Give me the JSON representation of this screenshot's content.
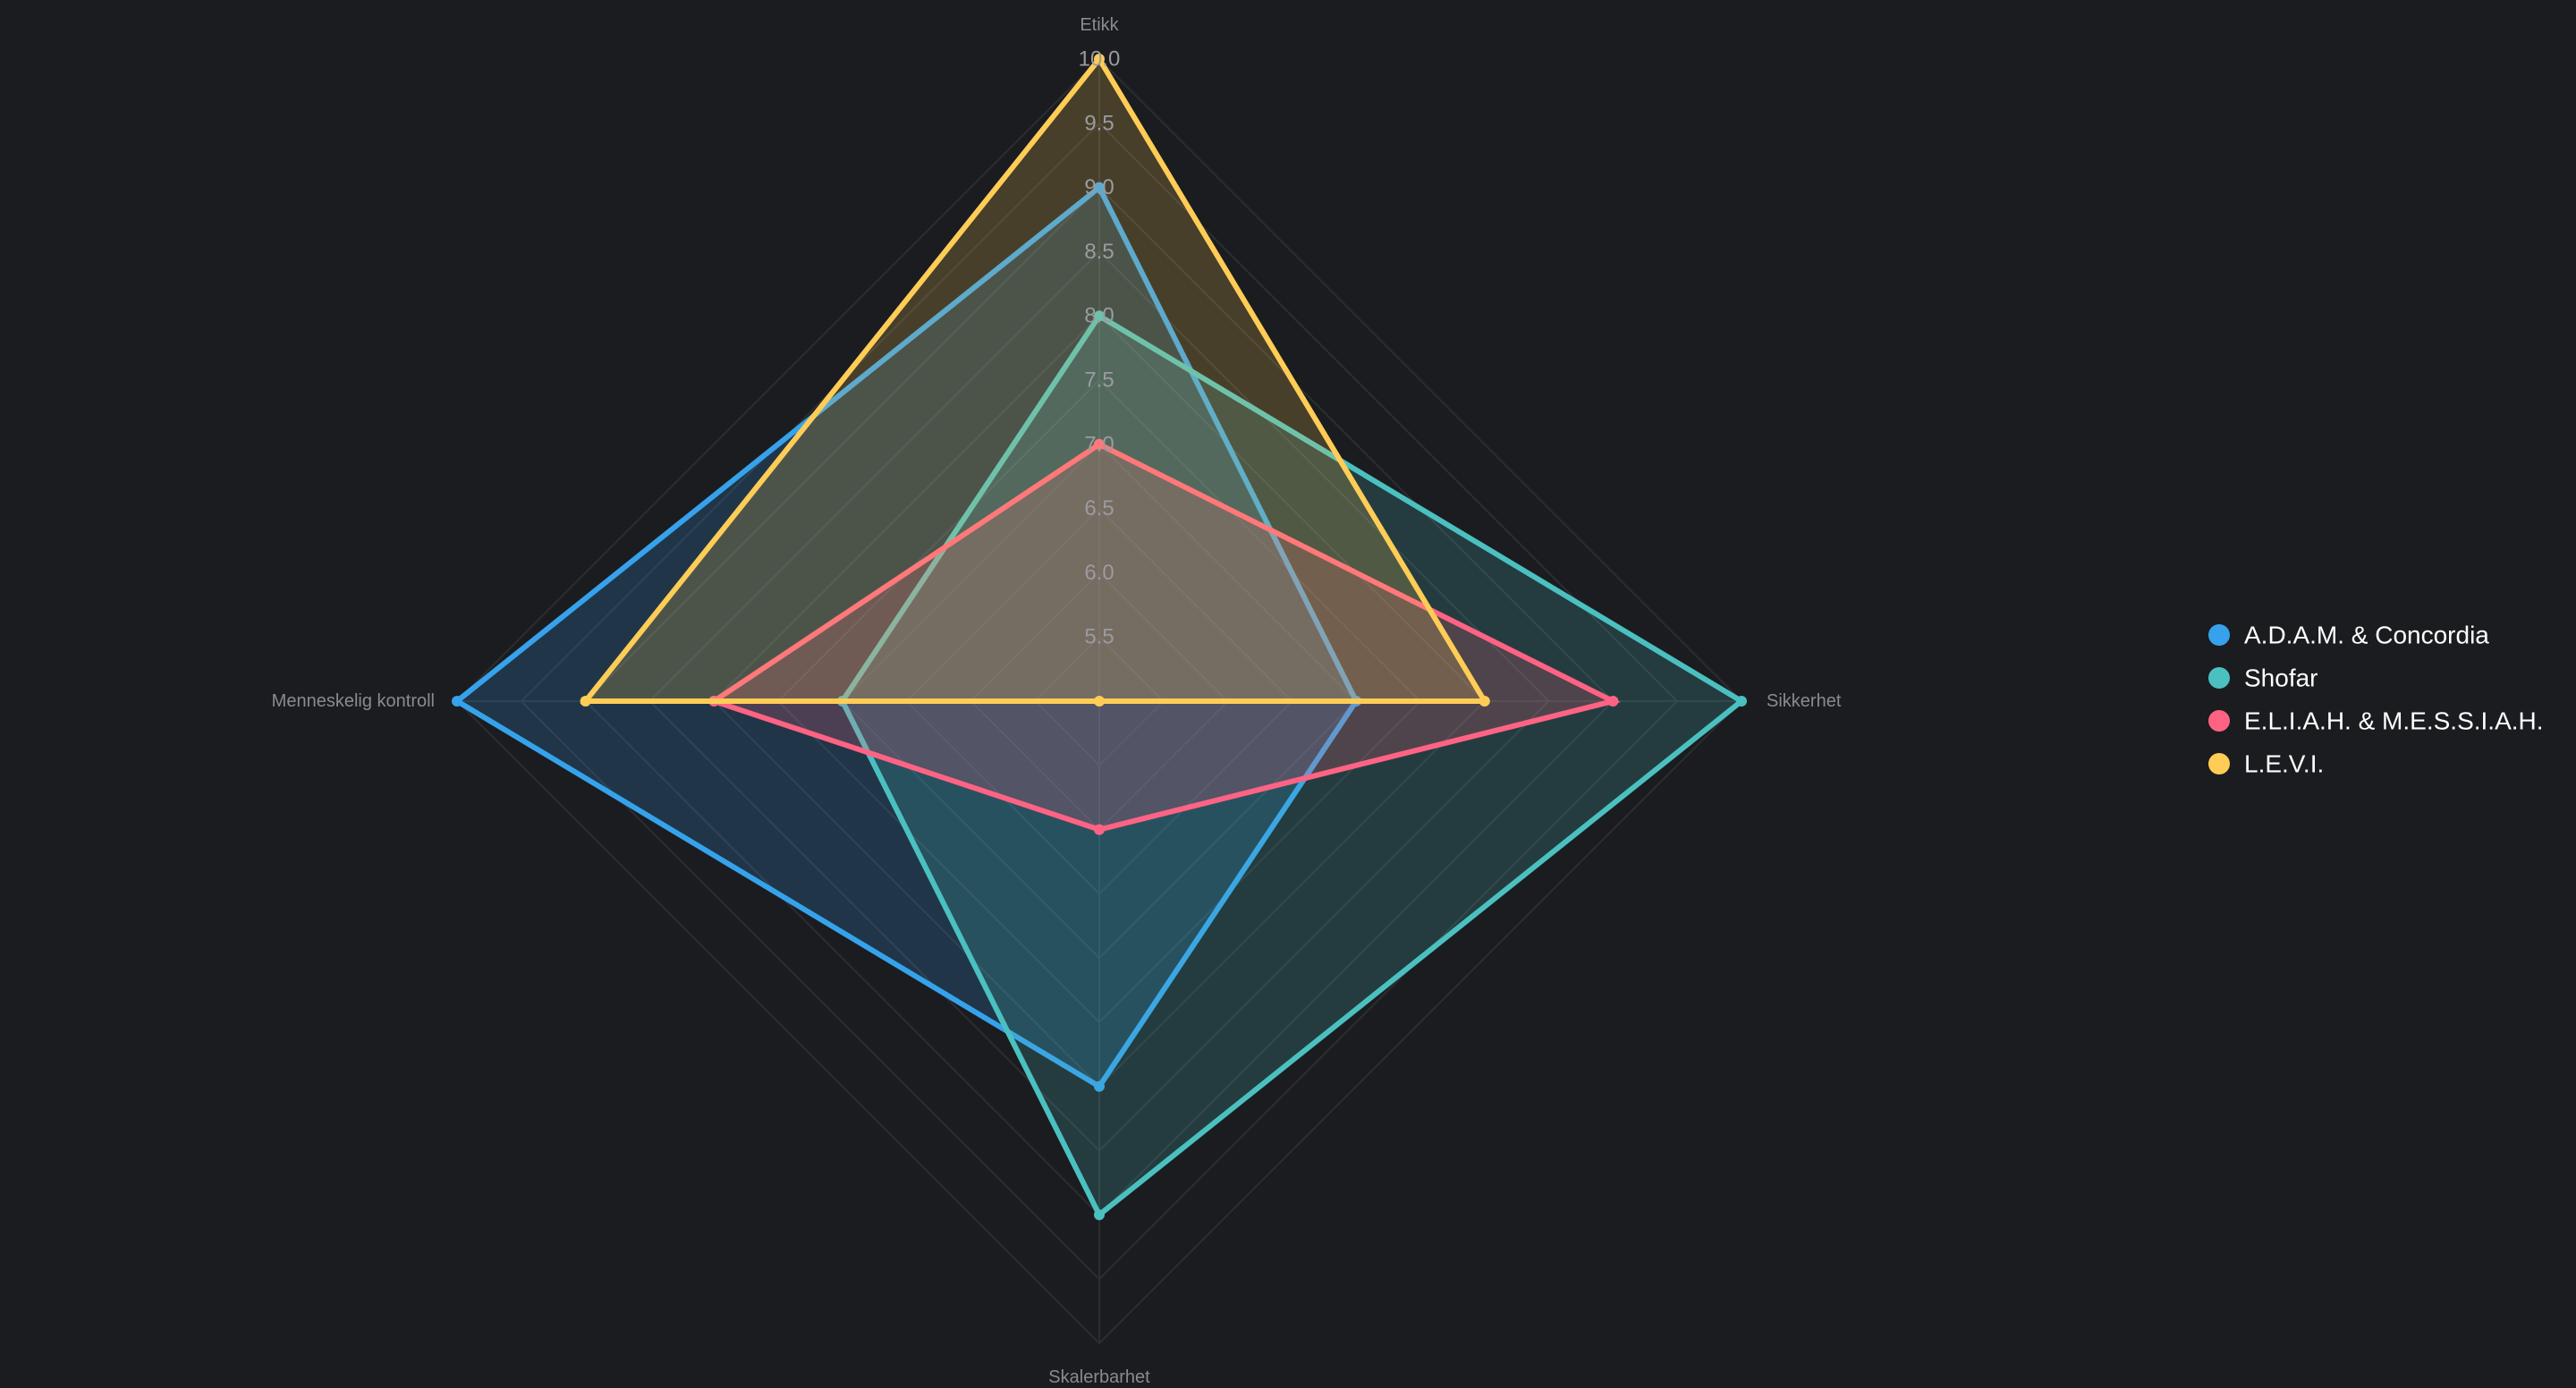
{
  "chart_data": {
    "type": "radar",
    "title": "",
    "axes": [
      "Etikk",
      "Sikkerhet",
      "Skalerbarhet",
      "Menneskelig kontroll"
    ],
    "range": [
      5.0,
      10.0
    ],
    "ticks": [
      "5.5",
      "6.0",
      "6.5",
      "7.0",
      "7.5",
      "8.0",
      "8.5",
      "9.0",
      "9.5",
      "10.0"
    ],
    "tick_values": [
      5.5,
      6.0,
      6.5,
      7.0,
      7.5,
      8.0,
      8.5,
      9.0,
      9.5,
      10.0
    ],
    "grid": true,
    "legend_position": "right",
    "series": [
      {
        "name": "A.D.A.M. & Concordia",
        "color": "#36a2eb",
        "values": [
          9.0,
          7.0,
          8.0,
          10.0
        ]
      },
      {
        "name": "Shofar",
        "color": "#4bc0c0",
        "values": [
          8.0,
          10.0,
          9.0,
          7.0
        ]
      },
      {
        "name": "E.L.I.A.H. & M.E.S.S.I.A.H.",
        "color": "#ff6384",
        "values": [
          7.0,
          9.0,
          6.0,
          8.0
        ]
      },
      {
        "name": "L.E.V.I.",
        "color": "#ffcd56",
        "values": [
          10.0,
          8.0,
          5.0,
          9.0
        ]
      }
    ]
  }
}
